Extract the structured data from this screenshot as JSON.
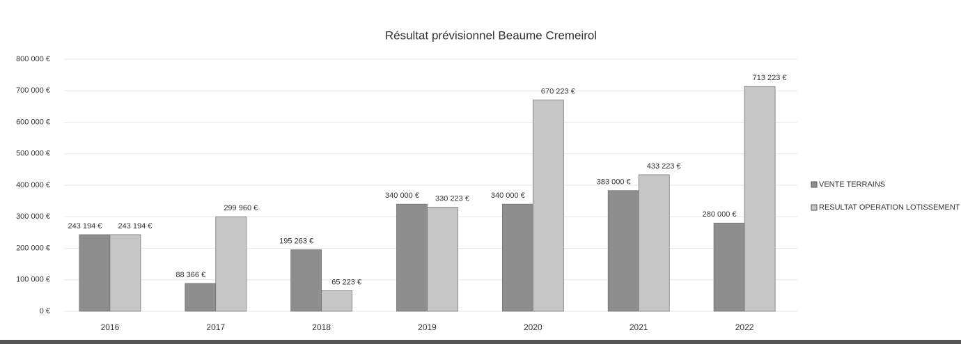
{
  "chart_data": {
    "type": "bar",
    "title": "Résultat  prévisionnel Beaume Cremeirol",
    "categories": [
      "2016",
      "2017",
      "2018",
      "2019",
      "2020",
      "2021",
      "2022"
    ],
    "series": [
      {
        "name": "VENTE TERRAINS",
        "color": "#8e8e8e",
        "values": [
          243194,
          88366,
          195263,
          340000,
          340000,
          383000,
          280000
        ],
        "value_labels": [
          "243 194 €",
          "88 366 €",
          "195 263 €",
          "340 000 €",
          "340 000 €",
          "383 000 €",
          "280 000 €"
        ]
      },
      {
        "name": "RESULTAT OPERATION LOTISSEMENT",
        "color": "#c6c6c6",
        "values": [
          243194,
          299960,
          65223,
          330223,
          670223,
          433223,
          713223
        ],
        "value_labels": [
          "243 194 €",
          "299 960 €",
          "65 223 €",
          "330 223 €",
          "670 223 €",
          "433 223 €",
          "713 223 €"
        ]
      }
    ],
    "ylim": [
      0,
      800000
    ],
    "yticks": [
      {
        "value": 0,
        "label": "0 €"
      },
      {
        "value": 100000,
        "label": "100 000 €"
      },
      {
        "value": 200000,
        "label": "200 000 €"
      },
      {
        "value": 300000,
        "label": "300 000 €"
      },
      {
        "value": 400000,
        "label": "400 000 €"
      },
      {
        "value": 500000,
        "label": "500 000 €"
      },
      {
        "value": 600000,
        "label": "600 000 €"
      },
      {
        "value": 700000,
        "label": "700 000 €"
      },
      {
        "value": 800000,
        "label": "800 000 €"
      }
    ],
    "grid": true,
    "legend": "right"
  }
}
